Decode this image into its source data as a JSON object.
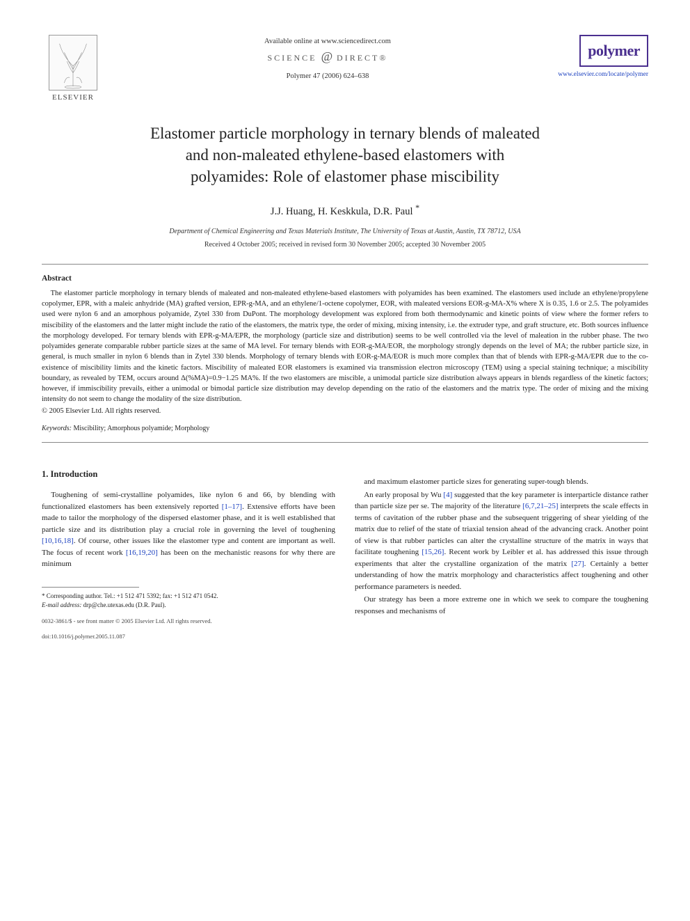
{
  "header": {
    "publisher_label": "ELSEVIER",
    "available_line": "Available online at www.sciencedirect.com",
    "sd_prefix": "SCIENCE",
    "sd_suffix": "DIRECT",
    "citation": "Polymer 47 (2006) 624–638",
    "journal_name": "polymer",
    "journal_url": "www.elsevier.com/locate/polymer",
    "journal_accent_color": "#4a2f8f"
  },
  "title_lines": [
    "Elastomer particle morphology in ternary blends of maleated",
    "and non-maleated ethylene-based elastomers with",
    "polyamides: Role of elastomer phase miscibility"
  ],
  "authors": "J.J. Huang, H. Keskkula, D.R. Paul",
  "corr_mark": "*",
  "affiliation": "Department of Chemical Engineering and Texas Materials Institute, The University of Texas at Austin, Austin, TX 78712, USA",
  "dates": "Received 4 October 2005; received in revised form 30 November 2005; accepted 30 November 2005",
  "abstract": {
    "heading": "Abstract",
    "body": "The elastomer particle morphology in ternary blends of maleated and non-maleated ethylene-based elastomers with polyamides has been examined. The elastomers used include an ethylene/propylene copolymer, EPR, with a maleic anhydride (MA) grafted version, EPR-g-MA, and an ethylene/1-octene copolymer, EOR, with maleated versions EOR-g-MA-X% where X is 0.35, 1.6 or 2.5. The polyamides used were nylon 6 and an amorphous polyamide, Zytel 330 from DuPont. The morphology development was explored from both thermodynamic and kinetic points of view where the former refers to miscibility of the elastomers and the latter might include the ratio of the elastomers, the matrix type, the order of mixing, mixing intensity, i.e. the extruder type, and graft structure, etc. Both sources influence the morphology developed. For ternary blends with EPR-g-MA/EPR, the morphology (particle size and distribution) seems to be well controlled via the level of maleation in the rubber phase. The two polyamides generate comparable rubber particle sizes at the same of MA level. For ternary blends with EOR-g-MA/EOR, the morphology strongly depends on the level of MA; the rubber particle size, in general, is much smaller in nylon 6 blends than in Zytel 330 blends. Morphology of ternary blends with EOR-g-MA/EOR is much more complex than that of blends with EPR-g-MA/EPR due to the co-existence of miscibility limits and the kinetic factors. Miscibility of maleated EOR elastomers is examined via transmission electron microscopy (TEM) using a special staining technique; a miscibility boundary, as revealed by TEM, occurs around Δ(%MA)=0.9−1.25 MA%. If the two elastomers are miscible, a unimodal particle size distribution always appears in blends regardless of the kinetic factors; however, if immiscibility prevails, either a unimodal or bimodal particle size distribution may develop depending on the ratio of the elastomers and the matrix type. The order of mixing and the mixing intensity do not seem to change the modality of the size distribution.",
    "copyright": "© 2005 Elsevier Ltd. All rights reserved."
  },
  "keywords": {
    "label": "Keywords:",
    "list": "Miscibility; Amorphous polyamide; Morphology"
  },
  "section1": {
    "heading": "1. Introduction",
    "col_left": [
      "Toughening of semi-crystalline polyamides, like nylon 6 and 66, by blending with functionalized elastomers has been extensively reported [1–17]. Extensive efforts have been made to tailor the morphology of the dispersed elastomer phase, and it is well established that particle size and its distribution play a crucial role in governing the level of toughening [10,16,18]. Of course, other issues like the elastomer type and content are important as well. The focus of recent work [16,19,20] has been on the mechanistic reasons for why there are minimum"
    ],
    "col_right": [
      "and maximum elastomer particle sizes for generating super-tough blends.",
      "An early proposal by Wu [4] suggested that the key parameter is interparticle distance rather than particle size per se. The majority of the literature [6,7,21–25] interprets the scale effects in terms of cavitation of the rubber phase and the subsequent triggering of shear yielding of the matrix due to relief of the state of triaxial tension ahead of the advancing crack. Another point of view is that rubber particles can alter the crystalline structure of the matrix in ways that facilitate toughening [15,26]. Recent work by Leibler et al. has addressed this issue through experiments that alter the crystalline organization of the matrix [27]. Certainly a better understanding of how the matrix morphology and characteristics affect toughening and other performance parameters is needed.",
      "Our strategy has been a more extreme one in which we seek to compare the toughening responses and mechanisms of"
    ]
  },
  "footnotes": {
    "corr": "* Corresponding author. Tel.: +1 512 471 5392; fax: +1 512 471 0542.",
    "email_label": "E-mail address:",
    "email": "drp@che.utexas.edu (D.R. Paul).",
    "line1": "0032-3861/$ - see front matter © 2005 Elsevier Ltd. All rights reserved.",
    "line2": "doi:10.1016/j.polymer.2005.11.087"
  },
  "link_color": "#1a3fbf"
}
